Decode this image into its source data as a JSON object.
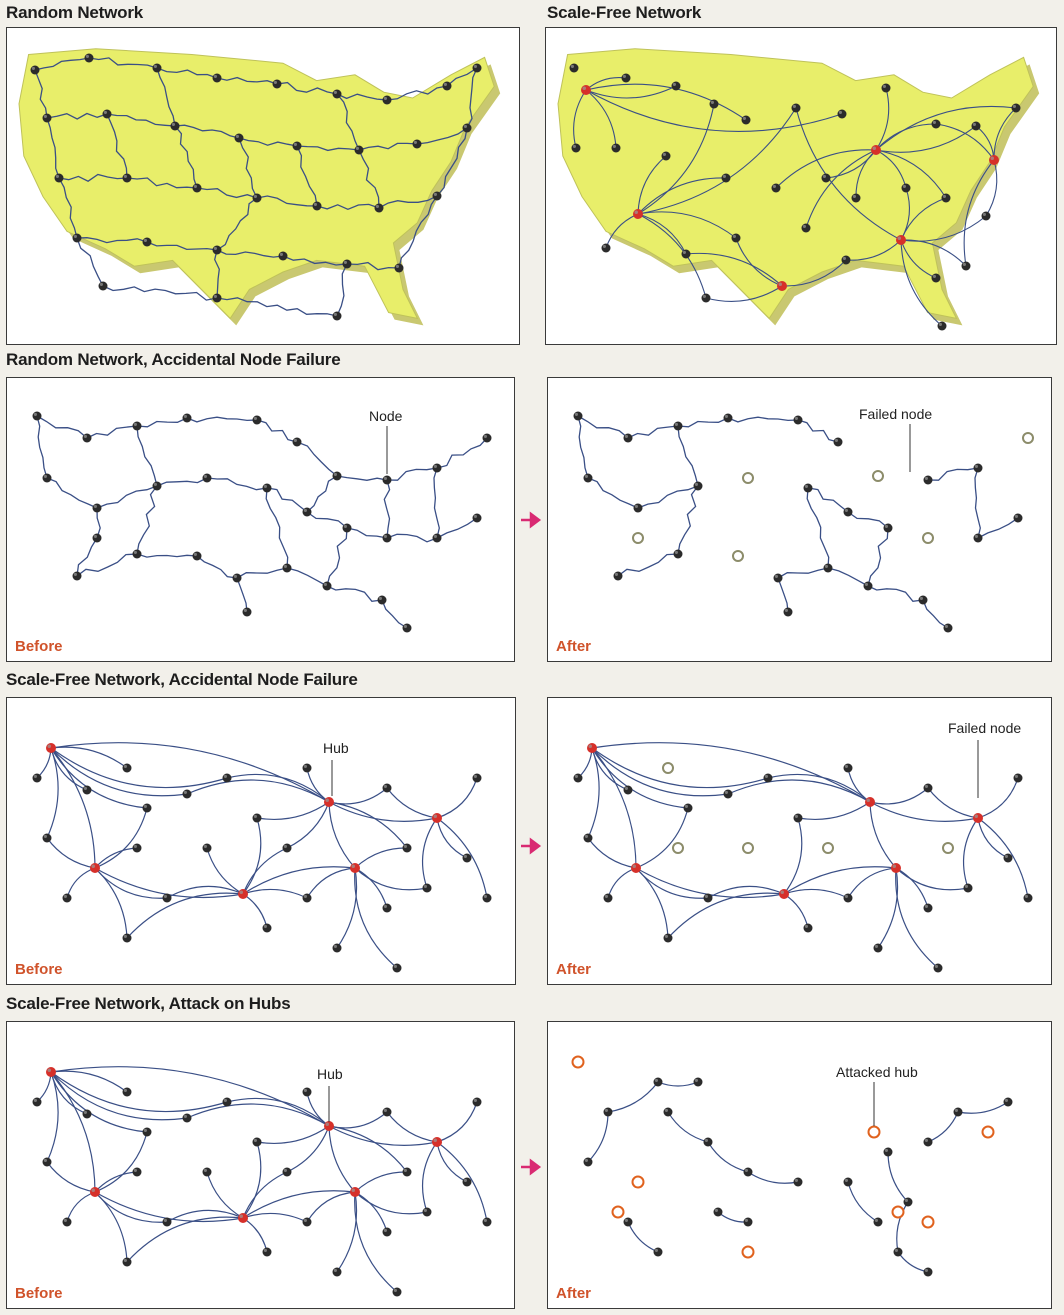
{
  "titles": {
    "random": "Random Network",
    "scale_free": "Scale-Free Network",
    "random_failure": "Random Network, Accidental Node Failure",
    "sf_failure": "Scale-Free Network, Accidental Node Failure",
    "sf_attack": "Scale-Free Network, Attack on Hubs"
  },
  "labels": {
    "node": "Node",
    "failed_node": "Failed node",
    "hub": "Hub",
    "attacked_hub": "Attacked hub",
    "before": "Before",
    "after": "After"
  },
  "colors": {
    "map_fill": "#e8ee6a",
    "map_edge": "#c9c870",
    "link": "#3a4f86",
    "node": "#2b2b2b",
    "hub": "#d6302a",
    "failed_ring": "#8c8c6a",
    "attacked_ring": "#e0621e",
    "arrow": "#d92a72",
    "caption": "#d0532b"
  }
}
